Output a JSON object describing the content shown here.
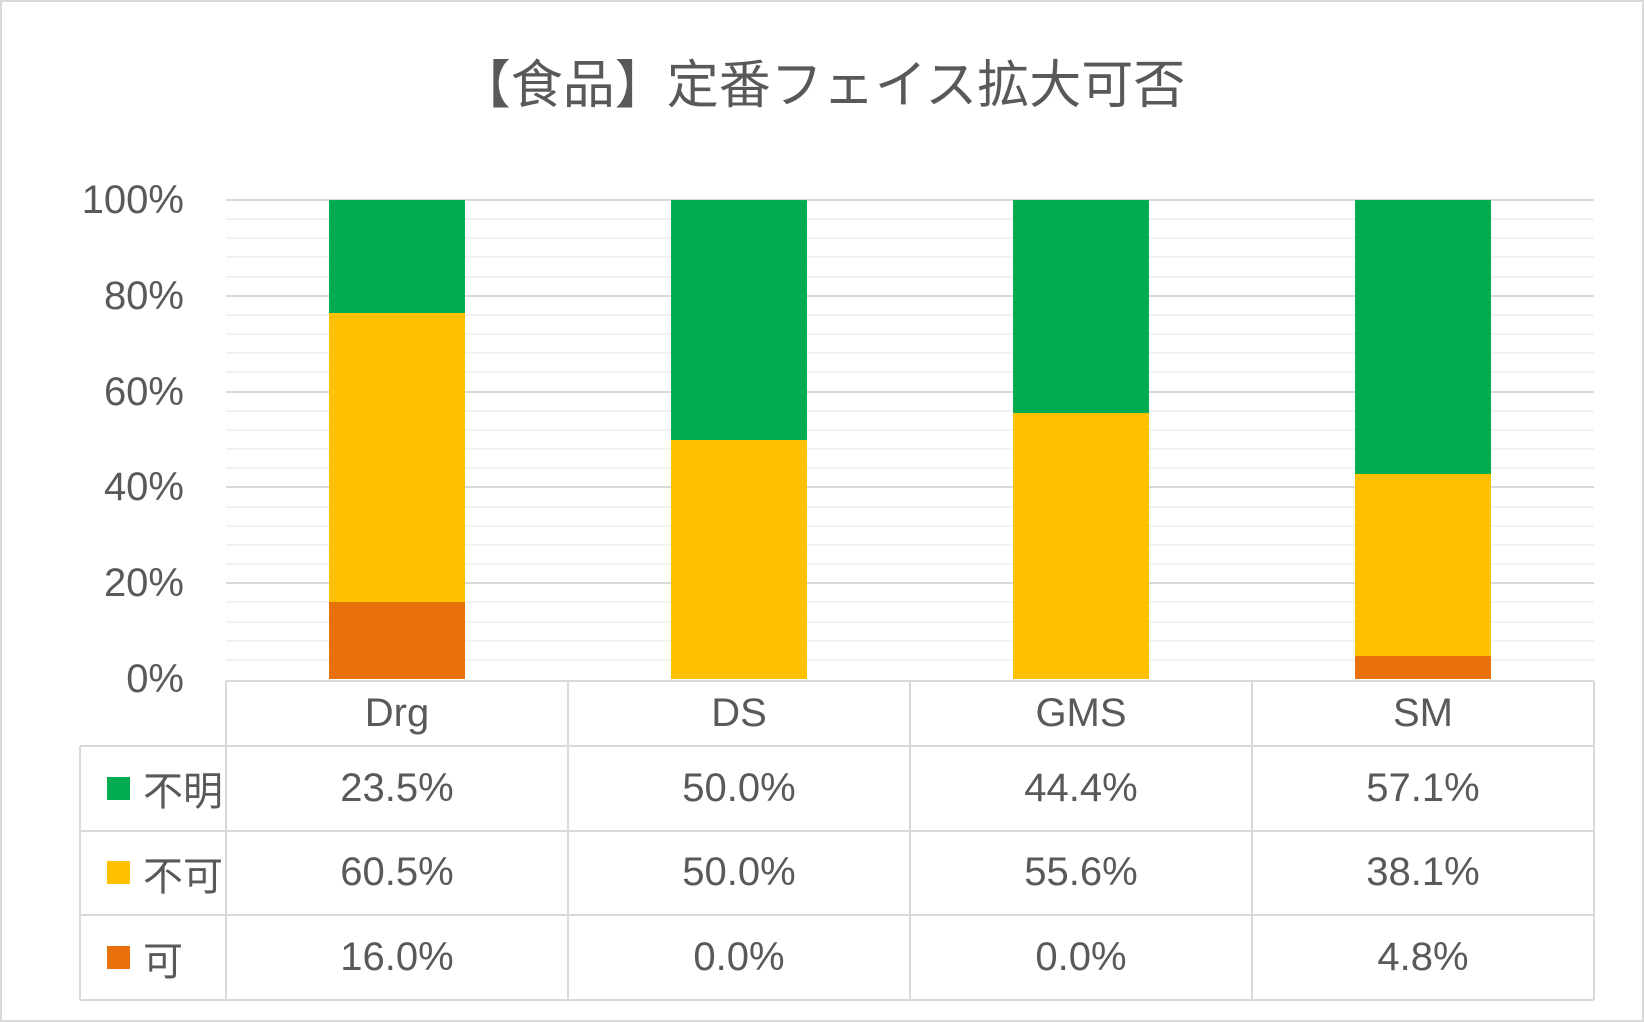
{
  "chart_data": {
    "type": "bar",
    "subtype": "stacked-100-percent",
    "title": "【食品】定番フェイス拡大可否",
    "categories": [
      "Drg",
      "DS",
      "GMS",
      "SM"
    ],
    "series": [
      {
        "name": "不明",
        "key": "unknown",
        "color": "#00ac50",
        "values": [
          23.5,
          50.0,
          44.4,
          57.1
        ],
        "value_labels": [
          "23.5%",
          "50.0%",
          "44.4%",
          "57.1%"
        ]
      },
      {
        "name": "不可",
        "key": "not-allowed",
        "color": "#ffc000",
        "values": [
          60.5,
          50.0,
          55.6,
          38.1
        ],
        "value_labels": [
          "60.5%",
          "50.0%",
          "55.6%",
          "38.1%"
        ]
      },
      {
        "name": "可",
        "key": "allowed",
        "color": "#e8710c",
        "values": [
          16.0,
          0.0,
          0.0,
          4.8
        ],
        "value_labels": [
          "16.0%",
          "0.0%",
          "0.0%",
          "4.8%"
        ]
      }
    ],
    "stack_order_bottom_to_top": [
      "可",
      "不可",
      "不明"
    ],
    "y_axis": {
      "ticks": [
        "100%",
        "80%",
        "60%",
        "40%",
        "20%",
        "0%"
      ],
      "min": 0,
      "max": 100,
      "major_unit": 20,
      "minor_unit": 4
    },
    "legend_position": "data-table-left-column",
    "gridlines": {
      "major": true,
      "minor": true
    }
  },
  "colors": {
    "text": "#595959",
    "major_gridline": "#d9d9d9",
    "minor_gridline": "#f2f2f2",
    "table_border": "#d9d9d9",
    "frame_border": "#d9d9d9",
    "background": "#ffffff"
  }
}
